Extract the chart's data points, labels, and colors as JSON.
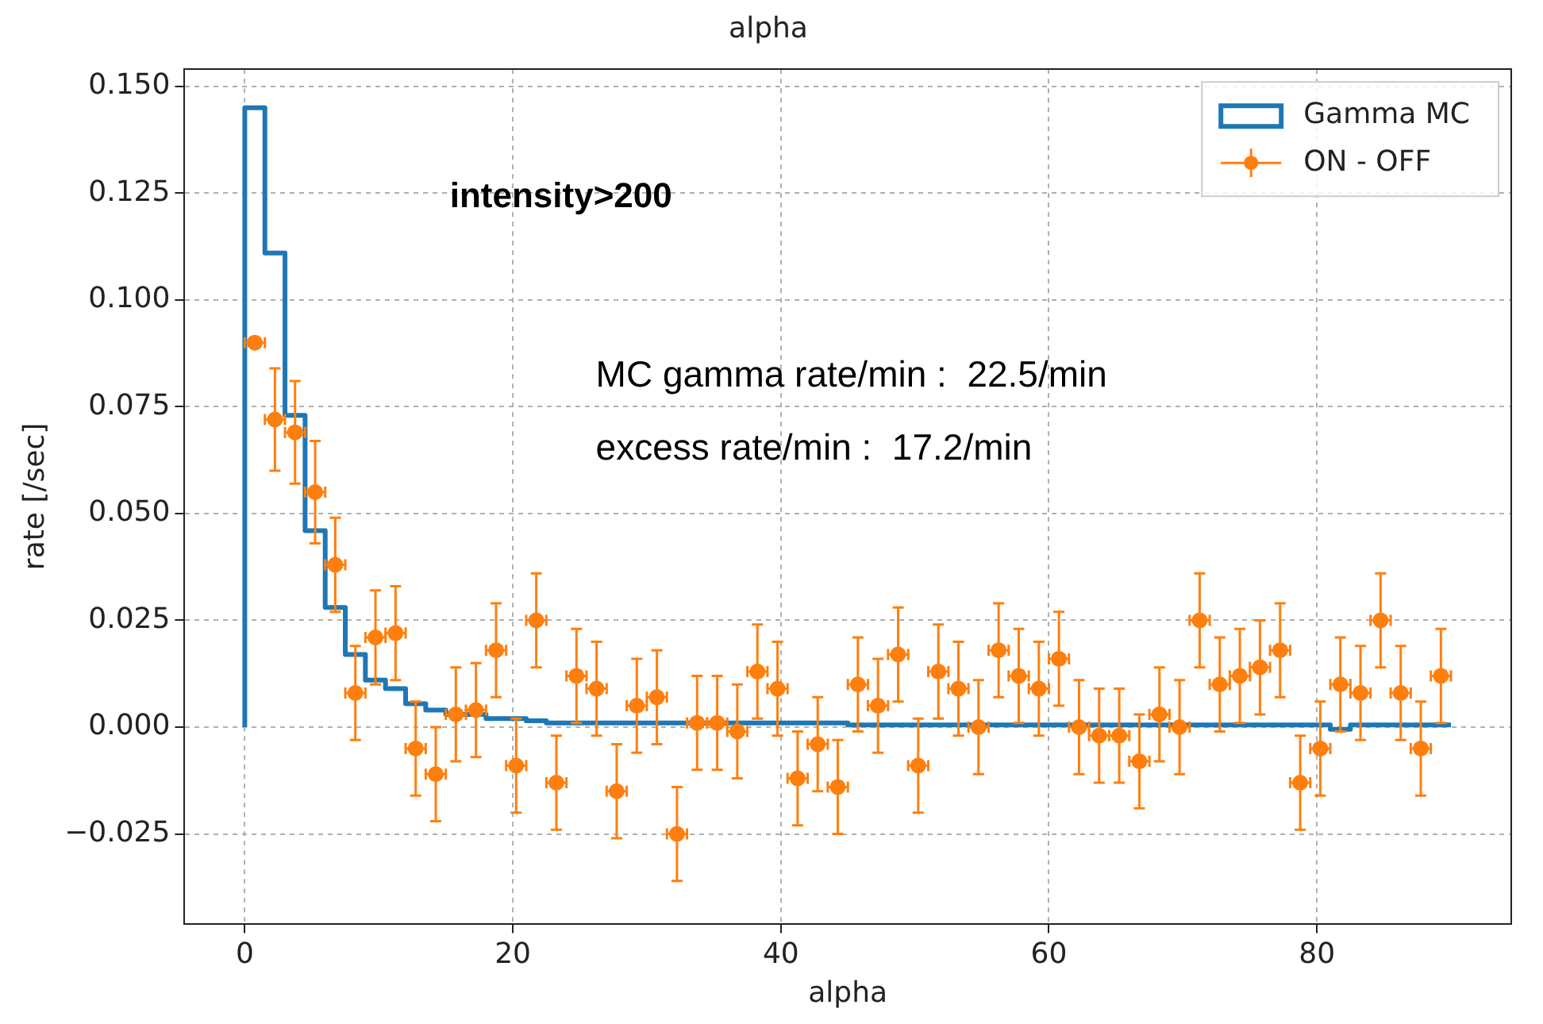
{
  "chart_data": {
    "type": "histogram",
    "title": "alpha",
    "xlabel": "alpha",
    "ylabel": "rate [/sec]",
    "xlim": [
      -4.5,
      94.5
    ],
    "xticks": [
      0,
      20,
      40,
      60,
      80
    ],
    "ylim": [
      -0.046,
      0.154
    ],
    "yticks": [
      {
        "value": -0.025,
        "label": "−0.025"
      },
      {
        "value": 0,
        "label": "0.000"
      },
      {
        "value": 0.025,
        "label": "0.025"
      },
      {
        "value": 0.05,
        "label": "0.050"
      },
      {
        "value": 0.075,
        "label": "0.075"
      },
      {
        "value": 0.1,
        "label": "0.100"
      },
      {
        "value": 0.125,
        "label": "0.125"
      },
      {
        "value": 0.15,
        "label": "0.150"
      }
    ],
    "grid": true,
    "legend": "top right",
    "marker": "circle",
    "annotations": [
      "intensity>200",
      "MC gamma rate/min :  22.5/min",
      "excess rate/min :  17.2/min"
    ],
    "series": [
      {
        "name": "Gamma MC",
        "color": "#1f77b4",
        "bins": [
          0,
          1.5,
          3,
          4.5,
          6,
          7.5,
          9,
          10.5,
          12,
          13.5,
          15,
          16.5,
          18,
          19.5,
          21,
          22.5,
          24,
          25.5,
          27,
          28.5,
          30,
          31.5,
          33,
          34.5,
          36,
          37.5,
          39,
          40.5,
          42,
          43.5,
          45,
          46.5,
          48,
          49.5,
          51,
          52.5,
          54,
          55.5,
          57,
          58.5,
          60,
          61.5,
          63,
          64.5,
          66,
          67.5,
          69,
          70.5,
          72,
          73.5,
          75,
          76.5,
          78,
          79.5,
          81,
          82.5,
          84,
          85.5,
          87,
          88.5,
          90
        ],
        "values": [
          0.145,
          0.111,
          0.073,
          0.046,
          0.028,
          0.017,
          0.011,
          0.009,
          0.0055,
          0.004,
          0.003,
          0.003,
          0.002,
          0.002,
          0.0015,
          0.001,
          0.001,
          0.001,
          0.001,
          0.001,
          0.001,
          0.001,
          0.001,
          0.001,
          0.001,
          0.001,
          0.001,
          0.001,
          0.001,
          0.001,
          0.0005,
          0.0005,
          0.0005,
          0.0005,
          0.0005,
          0.0005,
          0.0005,
          0.0005,
          0.0005,
          0.0005,
          0.0005,
          0.0005,
          0.0005,
          0.0005,
          0.0005,
          0.0005,
          0.0005,
          0.0005,
          0.0005,
          0.0005,
          0.0005,
          0.0005,
          0.0005,
          0.0005,
          -0.0005,
          0.0005,
          0.0005,
          0.0005,
          0.0005,
          0.0005
        ]
      },
      {
        "type": "scatter",
        "name": "ON - OFF",
        "color": "#ff7f0e",
        "x": [
          0.75,
          2.25,
          3.75,
          5.25,
          6.75,
          8.25,
          9.75,
          11.25,
          12.75,
          14.25,
          15.75,
          17.25,
          18.75,
          20.25,
          21.75,
          23.25,
          24.75,
          26.25,
          27.75,
          29.25,
          30.75,
          32.25,
          33.75,
          35.25,
          36.75,
          38.25,
          39.75,
          41.25,
          42.75,
          44.25,
          45.75,
          47.25,
          48.75,
          50.25,
          51.75,
          53.25,
          54.75,
          56.25,
          57.75,
          59.25,
          60.75,
          62.25,
          63.75,
          65.25,
          66.75,
          68.25,
          69.75,
          71.25,
          72.75,
          74.25,
          75.75,
          77.25,
          78.75,
          80.25,
          81.75,
          83.25,
          84.75,
          86.25,
          87.75,
          89.25
        ],
        "values": [
          0.09,
          0.072,
          0.069,
          0.055,
          0.038,
          0.008,
          0.021,
          0.022,
          -0.005,
          -0.011,
          0.003,
          0.004,
          0.018,
          -0.009,
          0.025,
          -0.013,
          0.012,
          0.009,
          -0.015,
          0.005,
          0.007,
          -0.025,
          0.001,
          0.001,
          -0.001,
          0.013,
          0.009,
          -0.012,
          -0.004,
          -0.014,
          0.01,
          0.005,
          0.017,
          -0.009,
          0.013,
          0.009,
          0.0,
          0.018,
          0.012,
          0.009,
          0.016,
          0.0,
          -0.002,
          -0.002,
          -0.008,
          0.003,
          0.0,
          0.025,
          0.01,
          0.012,
          0.014,
          0.018,
          -0.013,
          -0.005,
          0.01,
          0.008,
          0.025,
          0.008,
          -0.005,
          0.012
        ],
        "errors": [
          0.001,
          0.012,
          0.012,
          0.012,
          0.011,
          0.011,
          0.011,
          0.011,
          0.011,
          0.011,
          0.011,
          0.011,
          0.011,
          0.011,
          0.011,
          0.011,
          0.011,
          0.011,
          0.011,
          0.011,
          0.011,
          0.011,
          0.011,
          0.011,
          0.011,
          0.011,
          0.011,
          0.011,
          0.011,
          0.011,
          0.011,
          0.011,
          0.011,
          0.011,
          0.011,
          0.011,
          0.011,
          0.011,
          0.011,
          0.011,
          0.011,
          0.011,
          0.011,
          0.011,
          0.011,
          0.011,
          0.011,
          0.011,
          0.011,
          0.011,
          0.011,
          0.011,
          0.011,
          0.011,
          0.011,
          0.011,
          0.011,
          0.011,
          0.011,
          0.011
        ],
        "xerrors": [
          0.75,
          0.75,
          0.75,
          0.75,
          0.75,
          0.75,
          0.75,
          0.75,
          0.75,
          0.75,
          0.75,
          0.75,
          0.75,
          0.75,
          0.75,
          0.75,
          0.75,
          0.75,
          0.75,
          0.75,
          0.75,
          0.75,
          0.75,
          0.75,
          0.75,
          0.75,
          0.75,
          0.75,
          0.75,
          0.75,
          0.75,
          0.75,
          0.75,
          0.75,
          0.75,
          0.75,
          0.75,
          0.75,
          0.75,
          0.75,
          0.75,
          0.75,
          0.75,
          0.75,
          0.75,
          0.75,
          0.75,
          0.75,
          0.75,
          0.75,
          0.75,
          0.75,
          0.75,
          0.75,
          0.75,
          0.75,
          0.75,
          0.75,
          0.75,
          0.75
        ]
      }
    ]
  }
}
